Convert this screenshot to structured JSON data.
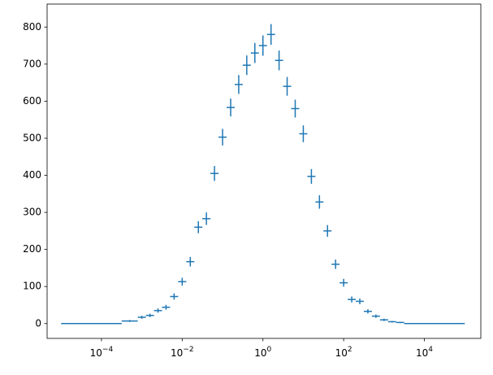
{
  "chart_data": {
    "type": "errorbar-histogram",
    "color": "#1f77b4",
    "xscale": "log",
    "bins": [
      1e-05,
      0.000316,
      0.000794,
      0.00126,
      0.002,
      0.00316,
      0.00501,
      0.00794,
      0.0126,
      0.02,
      0.0316,
      0.0501,
      0.0794,
      0.126,
      0.2,
      0.316,
      0.501,
      0.794,
      1.26,
      2,
      3.16,
      5.01,
      7.94,
      12.6,
      20,
      31.6,
      50.1,
      79.4,
      126,
      200,
      316,
      501,
      794,
      1260,
      2000,
      3160,
      100000
    ],
    "values": [
      0,
      7,
      17,
      22,
      35,
      44,
      73,
      113,
      167,
      260,
      283,
      405,
      503,
      583,
      645,
      697,
      730,
      750,
      780,
      710,
      640,
      580,
      512,
      397,
      328,
      250,
      160,
      110,
      65,
      60,
      33,
      20,
      10,
      5,
      3,
      0
    ],
    "errors": [
      0,
      2.6,
      4.1,
      4.7,
      5.9,
      6.6,
      8.5,
      10.6,
      12.9,
      16.1,
      16.8,
      20.1,
      22.4,
      24.1,
      25.4,
      26.4,
      27,
      27.4,
      27.9,
      26.6,
      25.3,
      24.1,
      22.6,
      19.9,
      18.1,
      15.8,
      12.6,
      10.5,
      8.1,
      7.7,
      5.7,
      4.5,
      3.2,
      2.2,
      1.7,
      0
    ],
    "xlim": [
      4.5e-06,
      250000
    ],
    "ylim": [
      -40,
      862
    ],
    "xticks": [
      {
        "value": 0.0001,
        "label": "10",
        "power": "−4"
      },
      {
        "value": 0.01,
        "label": "10",
        "power": "−2"
      },
      {
        "value": 1,
        "label": "10",
        "power": "0"
      },
      {
        "value": 100,
        "label": "10",
        "power": "2"
      },
      {
        "value": 10000,
        "label": "10",
        "power": "4"
      }
    ],
    "yticks": [
      0,
      100,
      200,
      300,
      400,
      500,
      600,
      700,
      800
    ]
  }
}
